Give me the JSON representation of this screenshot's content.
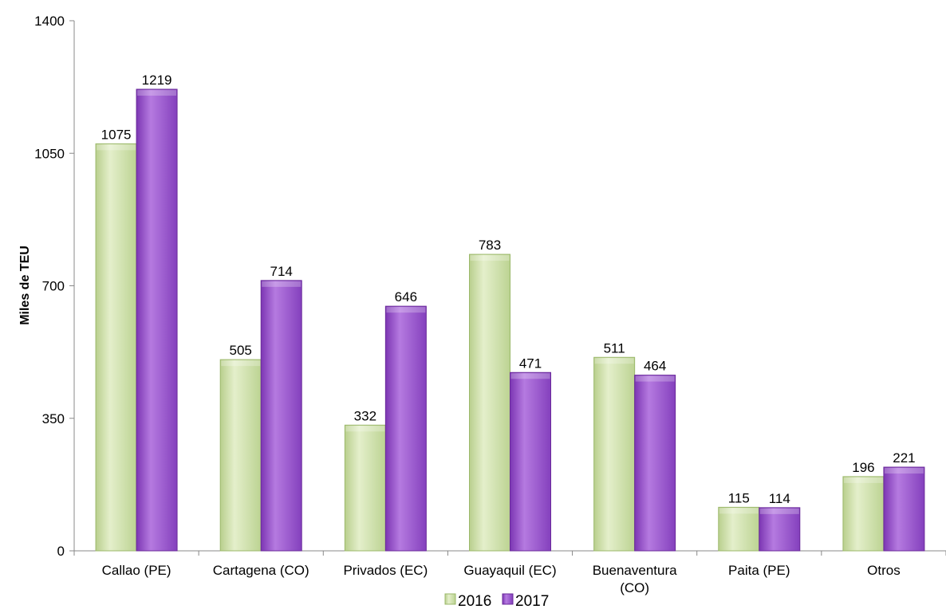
{
  "chart_data": {
    "type": "bar",
    "title": "",
    "xlabel": "",
    "ylabel": "Miles de TEU",
    "ylim": [
      0,
      1400
    ],
    "yticks": [
      "0",
      "350",
      "700",
      "1050",
      "1400"
    ],
    "categories": [
      [
        "Callao (PE)"
      ],
      [
        "Cartagena (CO)"
      ],
      [
        "Privados (EC)"
      ],
      [
        "Guayaquil (EC)"
      ],
      [
        "Buenaventura",
        "(CO)"
      ],
      [
        "Paita (PE)"
      ],
      [
        "Otros"
      ]
    ],
    "series": [
      {
        "name": "2016",
        "values": [
          1075,
          505,
          332,
          783,
          511,
          115,
          196
        ],
        "color": "#cfe0a8",
        "edge": "#9bb86a"
      },
      {
        "name": "2017",
        "values": [
          1219,
          714,
          646,
          471,
          464,
          114,
          221
        ],
        "color": "#9b4fd0",
        "edge": "#6a2a9a"
      }
    ],
    "grid": false,
    "legend_position": "bottom"
  }
}
